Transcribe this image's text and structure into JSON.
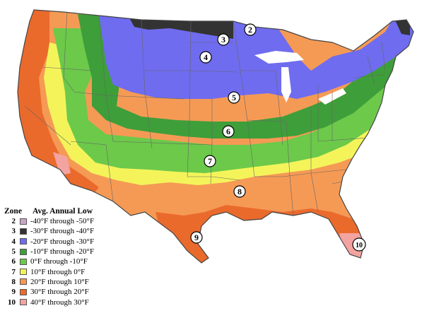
{
  "colors": {
    "z2": "#c8a6c8",
    "z3": "#333333",
    "z4": "#6f6cf0",
    "z5": "#3e9e3a",
    "z6": "#6cc94a",
    "z7": "#f4f45a",
    "z8": "#f59a55",
    "z9": "#ea6a2c",
    "z10": "#f3a3a0",
    "lakes": "#ffffff",
    "borders": "#555555"
  },
  "legend": {
    "zone_header": "Zone",
    "low_header": "Avg. Annual Low",
    "rows": [
      {
        "zone": "2",
        "range": "-40°F through -50°F",
        "color": "#c8a6c8"
      },
      {
        "zone": "3",
        "range": "-30°F through -40°F",
        "color": "#333333"
      },
      {
        "zone": "4",
        "range": "-20°F through -30°F",
        "color": "#6f6cf0"
      },
      {
        "zone": "5",
        "range": "-10°F through -20°F",
        "color": "#3e9e3a"
      },
      {
        "zone": "6",
        "range": "0°F through -10°F",
        "color": "#6cc94a"
      },
      {
        "zone": "7",
        "range": "10°F through 0°F",
        "color": "#f4f45a"
      },
      {
        "zone": "8",
        "range": "20°F through 10°F",
        "color": "#f59a55"
      },
      {
        "zone": "9",
        "range": "30°F through 20°F",
        "color": "#ea6a2c"
      },
      {
        "zone": "10",
        "range": "40°F through 30°F",
        "color": "#f3a3a0"
      }
    ]
  },
  "map_labels": {
    "z2": "2",
    "z3": "3",
    "z4": "4",
    "z5": "5",
    "z6": "6",
    "z7": "7",
    "z8": "8",
    "z9": "9",
    "z10": "10"
  }
}
